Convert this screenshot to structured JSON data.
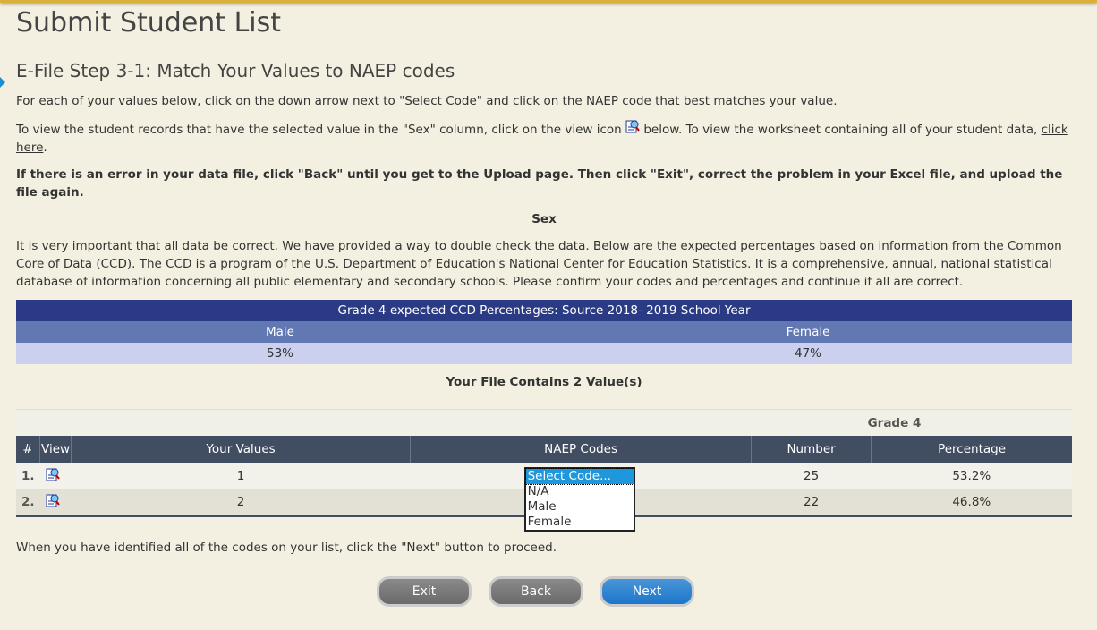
{
  "title": "Submit Student List",
  "step_title": "E-File Step 3-1: Match Your Values to NAEP codes",
  "instr1": "For each of your values below, click on the down arrow next to \"Select Code\" and click on the NAEP code that best matches your value.",
  "instr2a": "To view the student records that have the selected value in the \"Sex\" column, click on the view icon",
  "instr2b": "below. To view the worksheet containing all of your student data,",
  "instr2_link": "click here",
  "instr3": "If there is an error in your data file, click \"Back\" until you get to the Upload page. Then click \"Exit\", correct the problem in your Excel file, and upload the file again.",
  "section": "Sex",
  "para": "It is very important that all data be correct. We have provided a way to double check the data. Below are the expected percentages based on information from the Common Core of Data (CCD). The CCD is a program of the U.S. Department of Education's National Center for Education Statistics. It is a comprehensive, annual, national statistical database of information concerning all public elementary and secondary schools. Please confirm your codes and percentages and continue if all are correct.",
  "ccd": {
    "title": "Grade 4 expected CCD Percentages: Source 2018- 2019 School Year",
    "headers": [
      "Male",
      "Female"
    ],
    "values": [
      "53%",
      "47%"
    ]
  },
  "file_contains": "Your File Contains 2 Value(s)",
  "table": {
    "grade": "Grade 4",
    "headers": [
      "#",
      "View",
      "Your Values",
      "NAEP Codes",
      "Number",
      "Percentage"
    ],
    "rows": [
      {
        "n": "1.",
        "value": "1",
        "number": "25",
        "pct": "53.2%"
      },
      {
        "n": "2.",
        "value": "2",
        "number": "22",
        "pct": "46.8%"
      }
    ]
  },
  "dropdown": {
    "options": [
      "Select Code...",
      "N/A",
      "Male",
      "Female"
    ]
  },
  "footer": "When you have identified all of the codes on your list, click the \"Next\" button to proceed.",
  "buttons": {
    "exit": "Exit",
    "back": "Back",
    "next": "Next"
  }
}
